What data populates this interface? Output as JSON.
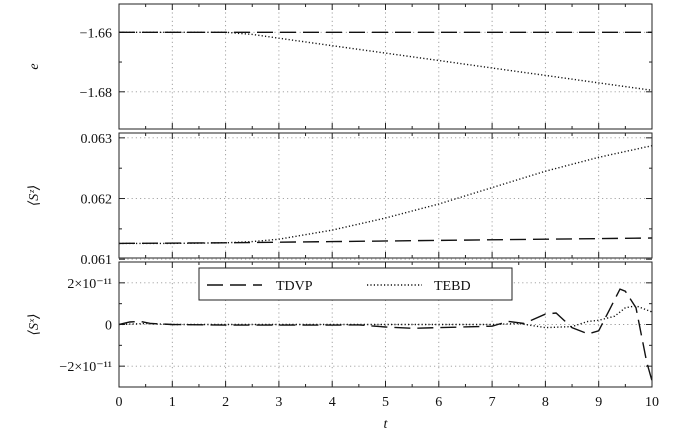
{
  "chart_data": [
    {
      "type": "line",
      "xlabel": "",
      "ylabel": "e",
      "xlim": [
        0,
        10
      ],
      "ylim": [
        -1.6925,
        -1.6505
      ],
      "yticks": [
        -1.68,
        -1.66
      ],
      "ytick_labels": [
        "−1.68",
        "−1.66"
      ],
      "grid": true,
      "series": [
        {
          "style": "dashed",
          "x": [
            0,
            10
          ],
          "y": [
            -1.66,
            -1.66
          ]
        },
        {
          "style": "dotted",
          "x": [
            0,
            1,
            2,
            2.5,
            3,
            4,
            5,
            6,
            7,
            8,
            9,
            10
          ],
          "y": [
            -1.66,
            -1.66,
            -1.66,
            -1.6607,
            -1.662,
            -1.6645,
            -1.667,
            -1.6695,
            -1.672,
            -1.6745,
            -1.677,
            -1.6795
          ]
        }
      ]
    },
    {
      "type": "line",
      "xlabel": "",
      "ylabel": "⟨Sᶻ⟩",
      "xlim": [
        0,
        10
      ],
      "ylim": [
        0.06102,
        0.06308
      ],
      "yticks": [
        0.061,
        0.062,
        0.063
      ],
      "ytick_labels": [
        "0.061",
        "0.062",
        "0.063"
      ],
      "grid": true,
      "series": [
        {
          "style": "dashed",
          "x": [
            0,
            2,
            4,
            6,
            8,
            10
          ],
          "y": [
            0.06126,
            0.06127,
            0.06129,
            0.06131,
            0.06133,
            0.06135
          ]
        },
        {
          "style": "dotted",
          "x": [
            0,
            1,
            2,
            2.5,
            3,
            4,
            5,
            6,
            7,
            8,
            9,
            10
          ],
          "y": [
            0.06126,
            0.06126,
            0.06127,
            0.06129,
            0.06133,
            0.06148,
            0.06168,
            0.06191,
            0.06218,
            0.06245,
            0.06268,
            0.06287
          ]
        }
      ]
    },
    {
      "type": "line",
      "xlabel": "t",
      "ylabel": "⟨Sˣ⟩",
      "xlim": [
        0,
        10
      ],
      "ylim": [
        -3e-11,
        3e-11
      ],
      "yticks": [
        -2e-11,
        0,
        2e-11
      ],
      "ytick_labels": [
        "−2×10⁻¹¹",
        "0",
        "2×10⁻¹¹"
      ],
      "xticks": [
        0,
        1,
        2,
        3,
        4,
        5,
        6,
        7,
        8,
        9,
        10
      ],
      "xtick_labels": [
        "0",
        "1",
        "2",
        "3",
        "4",
        "5",
        "6",
        "7",
        "8",
        "9",
        "10"
      ],
      "grid": true,
      "legend": {
        "position": "top-left",
        "entries": [
          {
            "label": "TDVP",
            "style": "dashed"
          },
          {
            "label": "TEBD",
            "style": "dotted"
          }
        ]
      },
      "series": [
        {
          "name": "TDVP",
          "style": "dashed",
          "x": [
            0,
            0.2,
            0.4,
            0.6,
            1,
            2,
            3,
            4,
            4.5,
            5,
            5.5,
            6,
            7,
            7.3,
            7.6,
            8,
            8.2,
            8.5,
            8.8,
            9,
            9.2,
            9.4,
            9.5,
            9.7,
            9.9,
            10
          ],
          "y": [
            0,
            1.2e-12,
            1.5e-12,
            5e-13,
            0,
            -3e-13,
            -3e-13,
            -3e-13,
            -2e-13,
            -1.2e-12,
            -1.8e-12,
            -1.5e-12,
            -8e-13,
            1.5e-12,
            5e-13,
            5e-12,
            5.5e-12,
            -1.5e-12,
            -4.5e-12,
            -3e-12,
            7e-12,
            1.7e-11,
            1.6e-11,
            8e-12,
            -1.8e-11,
            -2.7e-11
          ]
        },
        {
          "name": "TEBD",
          "style": "dotted",
          "x": [
            0,
            0.5,
            1,
            2,
            3,
            4,
            5,
            6,
            7,
            7.5,
            8,
            8.5,
            8.8,
            9,
            9.3,
            9.5,
            9.7,
            10
          ],
          "y": [
            0,
            5e-13,
            0,
            0,
            0,
            0,
            0,
            0,
            0,
            5e-13,
            -1.5e-12,
            -1e-12,
            1.5e-12,
            2e-12,
            4e-12,
            8e-12,
            9e-12,
            6e-12
          ]
        }
      ]
    }
  ]
}
